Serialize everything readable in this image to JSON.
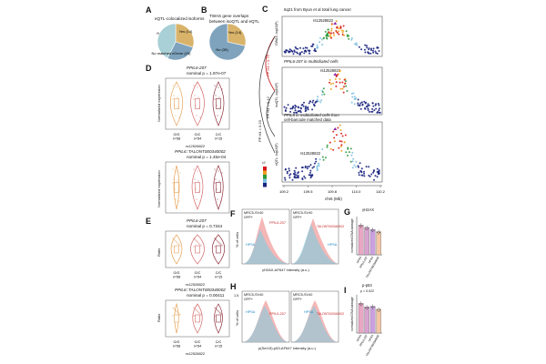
{
  "panels": {
    "A": {
      "letter": "A",
      "title": "eQTL-colocalized isoforms",
      "slices": [
        {
          "label": "Yes (14)",
          "value": 14,
          "color": "#d9b36a"
        },
        {
          "label": "No (13)",
          "value": 13,
          "color": "#7fa3bd"
        },
        {
          "label": "No matched eGene (20)",
          "value": 20,
          "color": "#a8d0d6"
        }
      ]
    },
    "B": {
      "letter": "B",
      "title_line1": "TWAS gene overlaps",
      "title_line2": "between isoQTL and eQTL",
      "slices": [
        {
          "label": "Yes (14)",
          "value": 14,
          "color": "#d9b36a"
        },
        {
          "label": "No (35)",
          "value": 35,
          "color": "#7fa3bd"
        }
      ]
    },
    "C": {
      "letter": "C",
      "subtitles": [
        "6q21 from Byun et al total lung cancer",
        "PPIL6-207 in multiciliated cells",
        "PPIL6 in multiciliated cells from",
        "cell-barcode matched data"
      ],
      "snp": "rs12528822",
      "ylabels": [
        "GWAS -log10(P)",
        "isoQTL -log10(P)",
        "eQTL -log10(P)"
      ],
      "pp_labels": [
        "PP H4 = 0.75",
        "PP H4 = 0.12",
        "PP H4 = 0.23"
      ],
      "xlabel": "chr6 (Mb)",
      "xticks": [
        "109.2",
        "109.5",
        "109.8",
        "110.0",
        "110.2"
      ],
      "legend_title": "r2",
      "legend_colors": [
        "#d7191c",
        "#f0a020",
        "#2b9a3a",
        "#7fc0e0",
        "#1a237e"
      ]
    },
    "D": {
      "letter": "D",
      "title1": "PPIL6-207",
      "p1": "nominal p = 1.97e-07",
      "ylabel1": "Normalized expression",
      "title2": "PPIL6::TALONT000340002",
      "p2": "nominal p = 1.45e-04",
      "ylabel2": "Normalized expression",
      "groups": [
        "G/G",
        "G/C",
        "C/C"
      ],
      "counts": [
        "n=58",
        "n=54",
        "n=15"
      ],
      "snp": "rs12528822"
    },
    "E": {
      "letter": "E",
      "title1": "PPIL6-207",
      "p1": "nominal p = 0.7344",
      "ylabel1": "Ratio",
      "title2": "PPIL6::TALONT000340002",
      "p2": "nominal p = 0.00411",
      "ylabel2": "Ratio",
      "groups": [
        "G/G",
        "G/C",
        "C/C"
      ],
      "counts": [
        "n=58",
        "n=54",
        "n=15"
      ],
      "snp": "rs12528822"
    },
    "F": {
      "letter": "F",
      "cell_line": "MRC5-SV40",
      "gfp": "GFP+",
      "label_a": "PPIL6-207",
      "label_b": "TALONT000340002",
      "control": "HPSA",
      "ylabel": "% of cells",
      "xlabel": "γH2AX-AF647 intensity (a.u.)"
    },
    "G": {
      "letter": "G",
      "title": "γH2AX",
      "ylabel": "normalized DNA damage",
      "bars": [
        {
          "label": "HPSA",
          "value": 1.0,
          "color": "#e9a7c4"
        },
        {
          "label": "PPIL6-207",
          "value": 0.92,
          "color": "#d9a2cf"
        },
        {
          "label": "HPSA",
          "value": 0.85,
          "color": "#cba0e0"
        },
        {
          "label": "TALONT000340002",
          "value": 0.78,
          "color": "#f3c6a6"
        }
      ]
    },
    "H": {
      "letter": "H",
      "cell_line": "MRC5-SV40",
      "gfp": "GFP+",
      "label_a": "PPIL6-207",
      "label_b": "TALONT000340002",
      "control": "HPSA",
      "ymax": "1.5",
      "ylabel": "% of cells",
      "xlabel": "p(Ser15)-p53-AF647 intensity (a.u.)"
    },
    "I": {
      "letter": "I",
      "title": "p-p53",
      "pval": "p = 0.022",
      "ylabel": "normalized DNA damage",
      "bars": [
        {
          "label": "HPSA",
          "value": 1.0,
          "color": "#e9a7c4"
        },
        {
          "label": "PPIL6-207",
          "value": 0.88,
          "color": "#d9a2cf"
        },
        {
          "label": "HPSA",
          "value": 0.9,
          "color": "#cba0e0"
        },
        {
          "label": "TALONT000340002",
          "value": 0.8,
          "color": "#f3c6a6"
        }
      ]
    }
  },
  "chart_data": [
    {
      "type": "pie",
      "title": "eQTL-colocalized isoforms",
      "categories": [
        "Yes",
        "No",
        "No matched eGene"
      ],
      "values": [
        14,
        13,
        20
      ]
    },
    {
      "type": "pie",
      "title": "TWAS gene overlaps between isoQTL and eQTL",
      "categories": [
        "Yes",
        "No"
      ],
      "values": [
        14,
        35
      ]
    },
    {
      "type": "bar",
      "title": "γH2AX",
      "categories": [
        "HPSA",
        "PPIL6-207",
        "HPSA",
        "TALONT000340002"
      ],
      "values": [
        1.0,
        0.92,
        0.85,
        0.78
      ],
      "ylabel": "normalized DNA damage"
    },
    {
      "type": "bar",
      "title": "p-p53",
      "categories": [
        "HPSA",
        "PPIL6-207",
        "HPSA",
        "TALONT000340002"
      ],
      "values": [
        1.0,
        0.88,
        0.9,
        0.8
      ],
      "ylabel": "normalized DNA damage"
    }
  ]
}
